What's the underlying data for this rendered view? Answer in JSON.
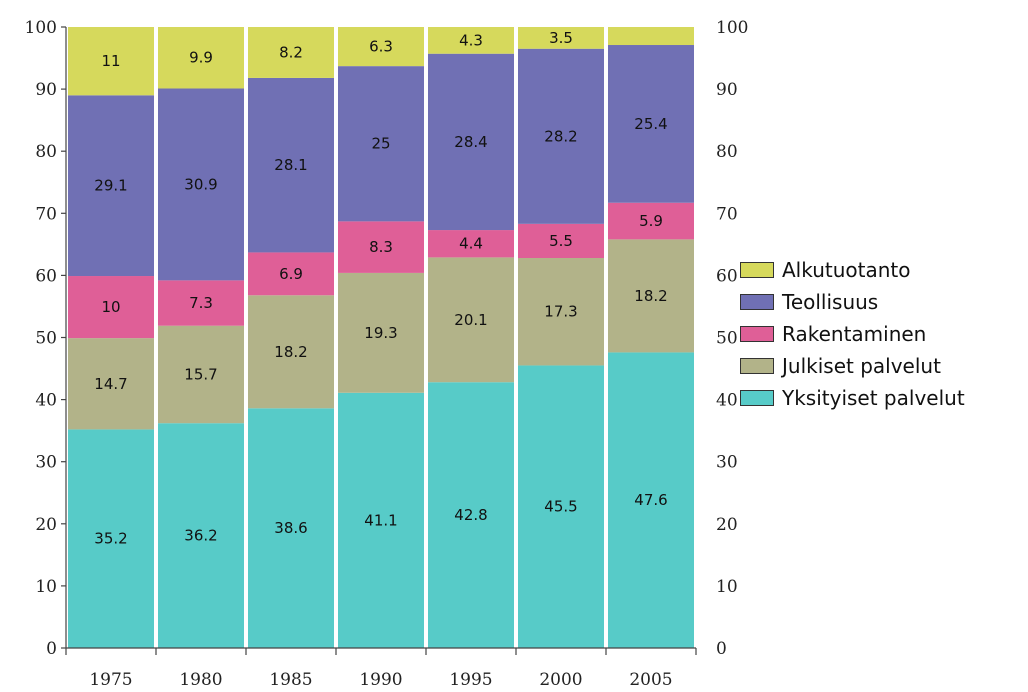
{
  "chart_data": {
    "type": "bar",
    "stacked": true,
    "categories": [
      "1975",
      "1980",
      "1985",
      "1990",
      "1995",
      "2000",
      "2005"
    ],
    "series": [
      {
        "name": "Yksityiset palvelut",
        "color": "#57cbc8",
        "values": [
          35.2,
          36.2,
          38.6,
          41.1,
          42.8,
          45.5,
          47.6
        ]
      },
      {
        "name": "Julkiset palvelut",
        "color": "#b2b389",
        "values": [
          14.7,
          15.7,
          18.2,
          19.3,
          20.1,
          17.3,
          18.2
        ]
      },
      {
        "name": "Rakentaminen",
        "color": "#df5f97",
        "values": [
          10,
          7.3,
          6.9,
          8.3,
          4.4,
          5.5,
          5.9
        ]
      },
      {
        "name": "Teollisuus",
        "color": "#7070b4",
        "values": [
          29.1,
          30.9,
          28.1,
          25,
          28.4,
          28.2,
          25.4
        ]
      },
      {
        "name": "Alkutuotanto",
        "color": "#d6d95c",
        "values": [
          11,
          9.9,
          8.2,
          6.3,
          4.3,
          3.5,
          null
        ]
      }
    ],
    "series_labels": [
      [
        "35.2",
        "36.2",
        "38.6",
        "41.1",
        "42.8",
        "45.5",
        "47.6"
      ],
      [
        "14.7",
        "15.7",
        "18.2",
        "19.3",
        "20.1",
        "17.3",
        "18.2"
      ],
      [
        "10",
        "7.3",
        "6.9",
        "8.3",
        "4.4",
        "5.5",
        "5.9"
      ],
      [
        "29.1",
        "30.9",
        "28.1",
        "25",
        "28.4",
        "28.2",
        "25.4"
      ],
      [
        "11",
        "9.9",
        "8.2",
        "6.3",
        "4.3",
        "3.5",
        ""
      ]
    ],
    "legend_order": [
      "Alkutuotanto",
      "Teollisuus",
      "Rakentaminen",
      "Julkiset palvelut",
      "Yksityiset palvelut"
    ],
    "ylim": [
      0,
      100
    ],
    "yticks": [
      0,
      10,
      20,
      30,
      40,
      50,
      60,
      70,
      80,
      90,
      100
    ],
    "ytick_labels": [
      "0",
      "10",
      "20",
      "30",
      "40",
      "50",
      "60",
      "70",
      "80",
      "90",
      "100"
    ],
    "right_axis_ticks": [
      "0",
      "10",
      "20",
      "30",
      "40",
      "50",
      "60",
      "70",
      "80",
      "90",
      "100"
    ],
    "legend_position": "right",
    "grid": false,
    "title": "",
    "xlabel": "",
    "ylabel": ""
  }
}
